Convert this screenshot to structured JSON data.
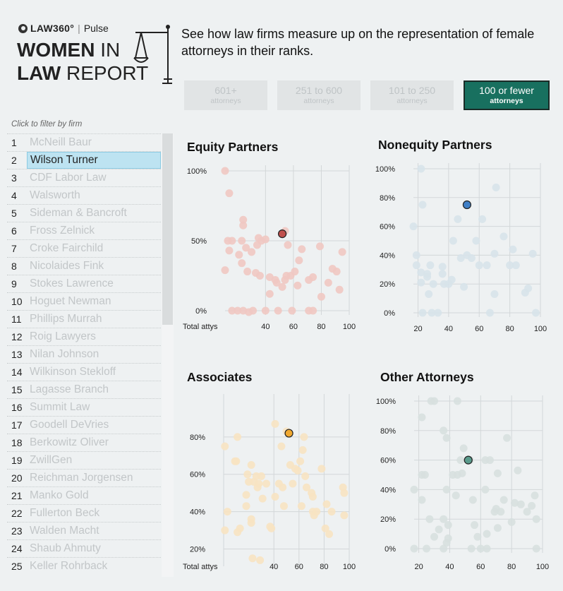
{
  "logo": {
    "brand_law": "LAW360°",
    "brand_sep": "|",
    "brand_pulse": "Pulse",
    "line1_bold": "WOMEN",
    "line1_light": " IN",
    "line2_bold": "LAW",
    "line2_light": " REPORT"
  },
  "intro": "See how law firms measure up on the representation of female attorneys in their ranks.",
  "filters": [
    {
      "label": "601+",
      "sub": "attorneys",
      "active": false
    },
    {
      "label": "251 to 600",
      "sub": "attorneys",
      "active": false
    },
    {
      "label": "101 to 250",
      "sub": "attorneys",
      "active": false
    },
    {
      "label": "100 or fewer",
      "sub": "attorneys",
      "active": true
    }
  ],
  "filter_hint": "Click to filter by firm",
  "firms": [
    {
      "rank": "1",
      "name": "McNeill Baur"
    },
    {
      "rank": "2",
      "name": "Wilson Turner",
      "selected": true
    },
    {
      "rank": "3",
      "name": "CDF Labor Law"
    },
    {
      "rank": "4",
      "name": "Walsworth"
    },
    {
      "rank": "5",
      "name": "Sideman & Bancroft"
    },
    {
      "rank": "6",
      "name": "Fross Zelnick"
    },
    {
      "rank": "7",
      "name": "Croke Fairchild"
    },
    {
      "rank": "8",
      "name": "Nicolaides Fink"
    },
    {
      "rank": "9",
      "name": "Stokes Lawrence"
    },
    {
      "rank": "10",
      "name": "Hoguet Newman"
    },
    {
      "rank": "11",
      "name": "Phillips Murrah"
    },
    {
      "rank": "12",
      "name": "Roig Lawyers"
    },
    {
      "rank": "13",
      "name": "Nilan Johnson"
    },
    {
      "rank": "14",
      "name": "Wilkinson Stekloff"
    },
    {
      "rank": "15",
      "name": "Lagasse Branch"
    },
    {
      "rank": "16",
      "name": "Summit Law"
    },
    {
      "rank": "17",
      "name": "Goodell DeVries"
    },
    {
      "rank": "18",
      "name": "Berkowitz Oliver"
    },
    {
      "rank": "19",
      "name": "ZwillGen"
    },
    {
      "rank": "20",
      "name": "Reichman Jorgensen"
    },
    {
      "rank": "21",
      "name": "Manko Gold"
    },
    {
      "rank": "22",
      "name": "Fullerton Beck"
    },
    {
      "rank": "23",
      "name": "Walden Macht"
    },
    {
      "rank": "24",
      "name": "Shaub Ahmuty"
    },
    {
      "rank": "25",
      "name": "Keller Rohrback"
    }
  ],
  "chart_data": [
    {
      "type": "scatter",
      "title": "Equity Partners",
      "xlabel": "Total attys",
      "ylabel": "",
      "xlim": [
        11,
        100
      ],
      "ylim": [
        0,
        100
      ],
      "xticks": [
        40,
        60,
        80,
        100
      ],
      "xtick_labels": [
        "40",
        "60",
        "80",
        "100"
      ],
      "yticks": [
        0,
        50,
        100
      ],
      "ytick_labels": [
        "0%",
        "50%",
        "100%"
      ],
      "grid": true,
      "color": "#efc8c2",
      "highlight_color": "#c0504d",
      "highlight": {
        "name": "Wilson Turner",
        "x": 52,
        "y": 55
      },
      "points": [
        [
          11,
          100
        ],
        [
          14,
          84
        ],
        [
          24,
          65
        ],
        [
          24,
          61
        ],
        [
          13,
          50
        ],
        [
          16,
          50
        ],
        [
          14,
          43
        ],
        [
          23,
          50
        ],
        [
          26,
          45
        ],
        [
          21,
          40
        ],
        [
          30,
          42
        ],
        [
          34,
          47
        ],
        [
          37,
          50
        ],
        [
          40,
          51
        ],
        [
          35,
          52
        ],
        [
          54,
          57
        ],
        [
          56,
          47
        ],
        [
          11,
          29
        ],
        [
          23,
          34
        ],
        [
          27,
          28
        ],
        [
          33,
          27
        ],
        [
          36,
          25
        ],
        [
          43,
          24
        ],
        [
          47,
          22
        ],
        [
          48,
          20
        ],
        [
          52,
          17
        ],
        [
          54,
          22
        ],
        [
          55,
          25
        ],
        [
          58,
          25
        ],
        [
          61,
          28
        ],
        [
          64,
          36
        ],
        [
          66,
          44
        ],
        [
          71,
          22
        ],
        [
          74,
          24
        ],
        [
          79,
          46
        ],
        [
          85,
          20
        ],
        [
          88,
          30
        ],
        [
          91,
          28
        ],
        [
          93,
          15
        ],
        [
          95,
          42
        ],
        [
          16,
          0
        ],
        [
          20,
          0
        ],
        [
          24,
          0
        ],
        [
          31,
          0
        ],
        [
          40,
          0
        ],
        [
          43,
          12
        ],
        [
          49,
          0
        ],
        [
          59,
          0
        ],
        [
          63,
          18
        ],
        [
          71,
          0
        ],
        [
          74,
          0
        ],
        [
          80,
          10
        ],
        [
          28,
          -1
        ]
      ]
    },
    {
      "type": "scatter",
      "title": "Nonequity Partners",
      "xlabel": "",
      "ylabel": "",
      "xlim": [
        17,
        100
      ],
      "ylim": [
        0,
        100
      ],
      "xticks": [
        20,
        40,
        60,
        80,
        100
      ],
      "xtick_labels": [
        "20",
        "40",
        "60",
        "80",
        "100"
      ],
      "yticks": [
        0,
        20,
        40,
        60,
        80,
        100
      ],
      "ytick_labels": [
        "0%",
        "20%",
        "40%",
        "60%",
        "80%",
        "100%"
      ],
      "grid": true,
      "color": "#d7e3ea",
      "highlight_color": "#3f7fc6",
      "highlight": {
        "name": "Wilson Turner",
        "x": 52,
        "y": 75
      },
      "points": [
        [
          22,
          100
        ],
        [
          23,
          75
        ],
        [
          17,
          60
        ],
        [
          19,
          40
        ],
        [
          19,
          33
        ],
        [
          22,
          28
        ],
        [
          22,
          21
        ],
        [
          26,
          27
        ],
        [
          26,
          25
        ],
        [
          28,
          33
        ],
        [
          30,
          20
        ],
        [
          36,
          32
        ],
        [
          36,
          27
        ],
        [
          37,
          20
        ],
        [
          40,
          20
        ],
        [
          42,
          23
        ],
        [
          43,
          50
        ],
        [
          46,
          65
        ],
        [
          48,
          38
        ],
        [
          50,
          18
        ],
        [
          52,
          40
        ],
        [
          55,
          38
        ],
        [
          58,
          50
        ],
        [
          60,
          33
        ],
        [
          62,
          65
        ],
        [
          65,
          33
        ],
        [
          70,
          41
        ],
        [
          70,
          13
        ],
        [
          71,
          87
        ],
        [
          76,
          53
        ],
        [
          80,
          33
        ],
        [
          82,
          44
        ],
        [
          84,
          33
        ],
        [
          90,
          14
        ],
        [
          92,
          17
        ],
        [
          95,
          41
        ],
        [
          23,
          0
        ],
        [
          27,
          13
        ],
        [
          29,
          0
        ],
        [
          33,
          0
        ],
        [
          67,
          0
        ],
        [
          97,
          0
        ]
      ]
    },
    {
      "type": "scatter",
      "title": "Associates",
      "xlabel": "Total attys",
      "ylabel": "",
      "xlim": [
        0,
        100
      ],
      "ylim": [
        13,
        100
      ],
      "xticks": [
        0,
        40,
        60,
        80,
        100
      ],
      "xtick_labels": [
        "",
        "40",
        "60",
        "80",
        "100"
      ],
      "yticks": [
        20,
        40,
        60,
        80
      ],
      "ytick_labels": [
        "20%",
        "40%",
        "60%",
        "80%"
      ],
      "grid": true,
      "color": "#f7e3c2",
      "highlight_color": "#f0a830",
      "highlight": {
        "name": "Wilson Turner",
        "x": 52,
        "y": 82
      },
      "points": [
        [
          1,
          75
        ],
        [
          9,
          67
        ],
        [
          10,
          67
        ],
        [
          11,
          80
        ],
        [
          11,
          29
        ],
        [
          13,
          31
        ],
        [
          18,
          49
        ],
        [
          18,
          43
        ],
        [
          19,
          60
        ],
        [
          20,
          56
        ],
        [
          22,
          65
        ],
        [
          22,
          34
        ],
        [
          22,
          36
        ],
        [
          24,
          56
        ],
        [
          26,
          59
        ],
        [
          27,
          53
        ],
        [
          28,
          55
        ],
        [
          30,
          59
        ],
        [
          31,
          47
        ],
        [
          34,
          55
        ],
        [
          37,
          32
        ],
        [
          38,
          31
        ],
        [
          41,
          87
        ],
        [
          41,
          48
        ],
        [
          44,
          55
        ],
        [
          46,
          75
        ],
        [
          47,
          53
        ],
        [
          48,
          43
        ],
        [
          50,
          83
        ],
        [
          53,
          65
        ],
        [
          55,
          55
        ],
        [
          57,
          63
        ],
        [
          59,
          62
        ],
        [
          61,
          67
        ],
        [
          62,
          43
        ],
        [
          63,
          73
        ],
        [
          64,
          80
        ],
        [
          65,
          59
        ],
        [
          66,
          53
        ],
        [
          70,
          50
        ],
        [
          71,
          48
        ],
        [
          71,
          40
        ],
        [
          72,
          38
        ],
        [
          74,
          40
        ],
        [
          78,
          63
        ],
        [
          81,
          31
        ],
        [
          82,
          44
        ],
        [
          84,
          28
        ],
        [
          86,
          40
        ],
        [
          95,
          53
        ],
        [
          96,
          50
        ],
        [
          96,
          38
        ],
        [
          1,
          30
        ],
        [
          23,
          15
        ],
        [
          29,
          14
        ],
        [
          3,
          40
        ]
      ]
    },
    {
      "type": "scatter",
      "title": "Other Attorneys",
      "xlabel": "",
      "ylabel": "",
      "xlim": [
        17,
        100
      ],
      "ylim": [
        0,
        100
      ],
      "xticks": [
        20,
        40,
        60,
        80,
        100
      ],
      "xtick_labels": [
        "20",
        "40",
        "60",
        "80",
        "100"
      ],
      "yticks": [
        0,
        20,
        40,
        60,
        80,
        100
      ],
      "ytick_labels": [
        "0%",
        "20%",
        "40%",
        "60%",
        "80%",
        "100%"
      ],
      "grid": true,
      "color": "#d7e0df",
      "highlight_color": "#5a9b8c",
      "highlight": {
        "name": "Wilson Turner",
        "x": 52,
        "y": 60
      },
      "points": [
        [
          22,
          89
        ],
        [
          28,
          100
        ],
        [
          30,
          100
        ],
        [
          36,
          80
        ],
        [
          38,
          75
        ],
        [
          45,
          100
        ],
        [
          17,
          40
        ],
        [
          22,
          50
        ],
        [
          22,
          33
        ],
        [
          24,
          50
        ],
        [
          27,
          20
        ],
        [
          30,
          8
        ],
        [
          33,
          13
        ],
        [
          36,
          20
        ],
        [
          38,
          40
        ],
        [
          38,
          4
        ],
        [
          39,
          16
        ],
        [
          42,
          50
        ],
        [
          45,
          50
        ],
        [
          47,
          60
        ],
        [
          49,
          68
        ],
        [
          53,
          60
        ],
        [
          55,
          33
        ],
        [
          56,
          16
        ],
        [
          58,
          8
        ],
        [
          60,
          0
        ],
        [
          63,
          60
        ],
        [
          63,
          40
        ],
        [
          64,
          10
        ],
        [
          66,
          60
        ],
        [
          69,
          25
        ],
        [
          70,
          27
        ],
        [
          71,
          51
        ],
        [
          73,
          25
        ],
        [
          75,
          33
        ],
        [
          77,
          75
        ],
        [
          80,
          18
        ],
        [
          82,
          31
        ],
        [
          84,
          53
        ],
        [
          86,
          30
        ],
        [
          90,
          25
        ],
        [
          93,
          29
        ],
        [
          95,
          36
        ],
        [
          96,
          20
        ],
        [
          17,
          0
        ],
        [
          25,
          0
        ],
        [
          36,
          0
        ],
        [
          39,
          7
        ],
        [
          44,
          36
        ],
        [
          48,
          51
        ],
        [
          54,
          0
        ],
        [
          64,
          0
        ],
        [
          71,
          14
        ],
        [
          96,
          0
        ]
      ]
    }
  ]
}
